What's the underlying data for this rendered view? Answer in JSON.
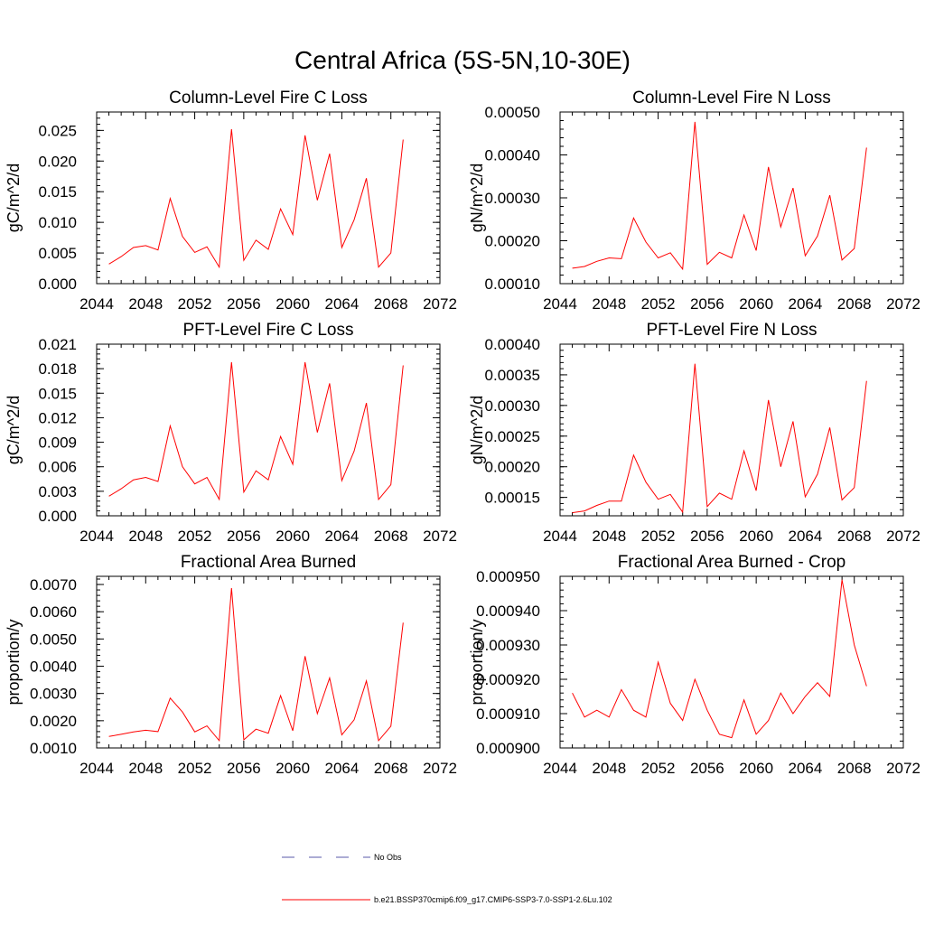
{
  "title": "Central Africa (5S-5N,10-30E)",
  "colors": {
    "series": "#ff0000",
    "obs": "#5a5aa8",
    "axes": "#000000"
  },
  "legend": {
    "obs_label": "No Obs",
    "series_label": "b.e21.BSSP370cmip6.f09_g17.CMIP6-SSP3-7.0-SSP1-2.6Lu.102"
  },
  "chart_data": [
    {
      "type": "line",
      "title": "Column-Level Fire C Loss",
      "ylabel": "gC/m^2/d",
      "xlim": [
        2044,
        2072
      ],
      "ylim": [
        0.0,
        0.028
      ],
      "yticks": [
        "0.000",
        "0.005",
        "0.010",
        "0.015",
        "0.020",
        "0.025"
      ],
      "ytick_values": [
        0.0,
        0.005,
        0.01,
        0.015,
        0.02,
        0.025
      ],
      "xticks": [
        "2044",
        "2048",
        "2052",
        "2056",
        "2060",
        "2064",
        "2068",
        "2072"
      ],
      "x": [
        2045,
        2046,
        2047,
        2048,
        2049,
        2050,
        2051,
        2052,
        2053,
        2054,
        2055,
        2056,
        2057,
        2058,
        2059,
        2060,
        2061,
        2062,
        2063,
        2064,
        2065,
        2066,
        2067,
        2068,
        2069
      ],
      "y": [
        0.0032,
        0.0044,
        0.0059,
        0.0062,
        0.0055,
        0.0139,
        0.0077,
        0.0051,
        0.006,
        0.0027,
        0.0252,
        0.0038,
        0.0071,
        0.0056,
        0.0122,
        0.008,
        0.0242,
        0.0136,
        0.0212,
        0.0059,
        0.0104,
        0.0172,
        0.0027,
        0.005,
        0.0235
      ]
    },
    {
      "type": "line",
      "title": "Column-Level Fire N Loss",
      "ylabel": "gN/m^2/d",
      "xlim": [
        2044,
        2072
      ],
      "ylim": [
        0.0001,
        0.0005
      ],
      "yticks": [
        "0.00010",
        "0.00020",
        "0.00030",
        "0.00040",
        "0.00050"
      ],
      "ytick_values": [
        0.0001,
        0.0002,
        0.0003,
        0.0004,
        0.0005
      ],
      "xticks": [
        "2044",
        "2048",
        "2052",
        "2056",
        "2060",
        "2064",
        "2068",
        "2072"
      ],
      "x": [
        2045,
        2046,
        2047,
        2048,
        2049,
        2050,
        2051,
        2052,
        2053,
        2054,
        2055,
        2056,
        2057,
        2058,
        2059,
        2060,
        2061,
        2062,
        2063,
        2064,
        2065,
        2066,
        2067,
        2068,
        2069
      ],
      "y": [
        0.000136,
        0.00014,
        0.000152,
        0.00016,
        0.000158,
        0.000253,
        0.000197,
        0.00016,
        0.000172,
        0.000134,
        0.000477,
        0.000145,
        0.000173,
        0.00016,
        0.00026,
        0.000177,
        0.000372,
        0.000232,
        0.000323,
        0.000165,
        0.000211,
        0.000306,
        0.000155,
        0.000182,
        0.000417
      ]
    },
    {
      "type": "line",
      "title": "PFT-Level Fire C Loss",
      "ylabel": "gC/m^2/d",
      "xlim": [
        2044,
        2072
      ],
      "ylim": [
        0.0,
        0.021
      ],
      "yticks": [
        "0.000",
        "0.003",
        "0.006",
        "0.009",
        "0.012",
        "0.015",
        "0.018",
        "0.021"
      ],
      "ytick_values": [
        0.0,
        0.003,
        0.006,
        0.009,
        0.012,
        0.015,
        0.018,
        0.021
      ],
      "xticks": [
        "2044",
        "2048",
        "2052",
        "2056",
        "2060",
        "2064",
        "2068",
        "2072"
      ],
      "x": [
        2045,
        2046,
        2047,
        2048,
        2049,
        2050,
        2051,
        2052,
        2053,
        2054,
        2055,
        2056,
        2057,
        2058,
        2059,
        2060,
        2061,
        2062,
        2063,
        2064,
        2065,
        2066,
        2067,
        2068,
        2069
      ],
      "y": [
        0.0024,
        0.0033,
        0.0044,
        0.0047,
        0.0042,
        0.011,
        0.006,
        0.0039,
        0.0047,
        0.002,
        0.0188,
        0.0029,
        0.0055,
        0.0044,
        0.0097,
        0.0063,
        0.0188,
        0.0102,
        0.0162,
        0.0043,
        0.0079,
        0.0138,
        0.002,
        0.0038,
        0.0184
      ]
    },
    {
      "type": "line",
      "title": "PFT-Level Fire N Loss",
      "ylabel": "gN/m^2/d",
      "xlim": [
        2044,
        2072
      ],
      "ylim": [
        0.00012,
        0.0004
      ],
      "yticks": [
        "0.00015",
        "0.00020",
        "0.00025",
        "0.00030",
        "0.00035",
        "0.00040"
      ],
      "ytick_values": [
        0.00015,
        0.0002,
        0.00025,
        0.0003,
        0.00035,
        0.0004
      ],
      "xticks": [
        "2044",
        "2048",
        "2052",
        "2056",
        "2060",
        "2064",
        "2068",
        "2072"
      ],
      "x": [
        2045,
        2046,
        2047,
        2048,
        2049,
        2050,
        2051,
        2052,
        2053,
        2054,
        2055,
        2056,
        2057,
        2058,
        2059,
        2060,
        2061,
        2062,
        2063,
        2064,
        2065,
        2066,
        2067,
        2068,
        2069
      ],
      "y": [
        0.000125,
        0.000128,
        0.000137,
        0.000144,
        0.000144,
        0.000219,
        0.000175,
        0.000147,
        0.000155,
        0.000126,
        0.000368,
        0.000135,
        0.000157,
        0.000147,
        0.000226,
        0.000161,
        0.000309,
        0.0002,
        0.000274,
        0.000151,
        0.000188,
        0.000264,
        0.000146,
        0.000166,
        0.00034
      ]
    },
    {
      "type": "line",
      "title": "Fractional Area Burned",
      "ylabel": "proportion/y",
      "xlim": [
        2044,
        2072
      ],
      "ylim": [
        0.001,
        0.0073
      ],
      "yticks": [
        "0.0010",
        "0.0020",
        "0.0030",
        "0.0040",
        "0.0050",
        "0.0060",
        "0.0070"
      ],
      "ytick_values": [
        0.001,
        0.002,
        0.003,
        0.004,
        0.005,
        0.006,
        0.007
      ],
      "xticks": [
        "2044",
        "2048",
        "2052",
        "2056",
        "2060",
        "2064",
        "2068",
        "2072"
      ],
      "x": [
        2045,
        2046,
        2047,
        2048,
        2049,
        2050,
        2051,
        2052,
        2053,
        2054,
        2055,
        2056,
        2057,
        2058,
        2059,
        2060,
        2061,
        2062,
        2063,
        2064,
        2065,
        2066,
        2067,
        2068,
        2069
      ],
      "y": [
        0.00142,
        0.0015,
        0.00159,
        0.00165,
        0.0016,
        0.00283,
        0.00232,
        0.00159,
        0.00181,
        0.00127,
        0.00687,
        0.0013,
        0.00169,
        0.00154,
        0.00292,
        0.00163,
        0.00437,
        0.00226,
        0.00357,
        0.00148,
        0.00203,
        0.00346,
        0.00127,
        0.0018,
        0.0056
      ]
    },
    {
      "type": "line",
      "title": "Fractional Area Burned - Crop",
      "ylabel": "proportion/y",
      "xlim": [
        2044,
        2072
      ],
      "ylim": [
        0.0009,
        0.00095
      ],
      "yticks": [
        "0.000900",
        "0.000910",
        "0.000920",
        "0.000930",
        "0.000940",
        "0.000950"
      ],
      "ytick_values": [
        0.0009,
        0.00091,
        0.00092,
        0.00093,
        0.00094,
        0.00095
      ],
      "xticks": [
        "2044",
        "2048",
        "2052",
        "2056",
        "2060",
        "2064",
        "2068",
        "2072"
      ],
      "x": [
        2045,
        2046,
        2047,
        2048,
        2049,
        2050,
        2051,
        2052,
        2053,
        2054,
        2055,
        2056,
        2057,
        2058,
        2059,
        2060,
        2061,
        2062,
        2063,
        2064,
        2065,
        2066,
        2067,
        2068,
        2069
      ],
      "y": [
        0.000916,
        0.000909,
        0.000911,
        0.000909,
        0.000917,
        0.000911,
        0.000909,
        0.000925,
        0.000913,
        0.000908,
        0.00092,
        0.000911,
        0.000904,
        0.000903,
        0.000914,
        0.000904,
        0.000908,
        0.000916,
        0.00091,
        0.000915,
        0.000919,
        0.000915,
        0.000949,
        0.00093,
        0.000918
      ]
    }
  ]
}
